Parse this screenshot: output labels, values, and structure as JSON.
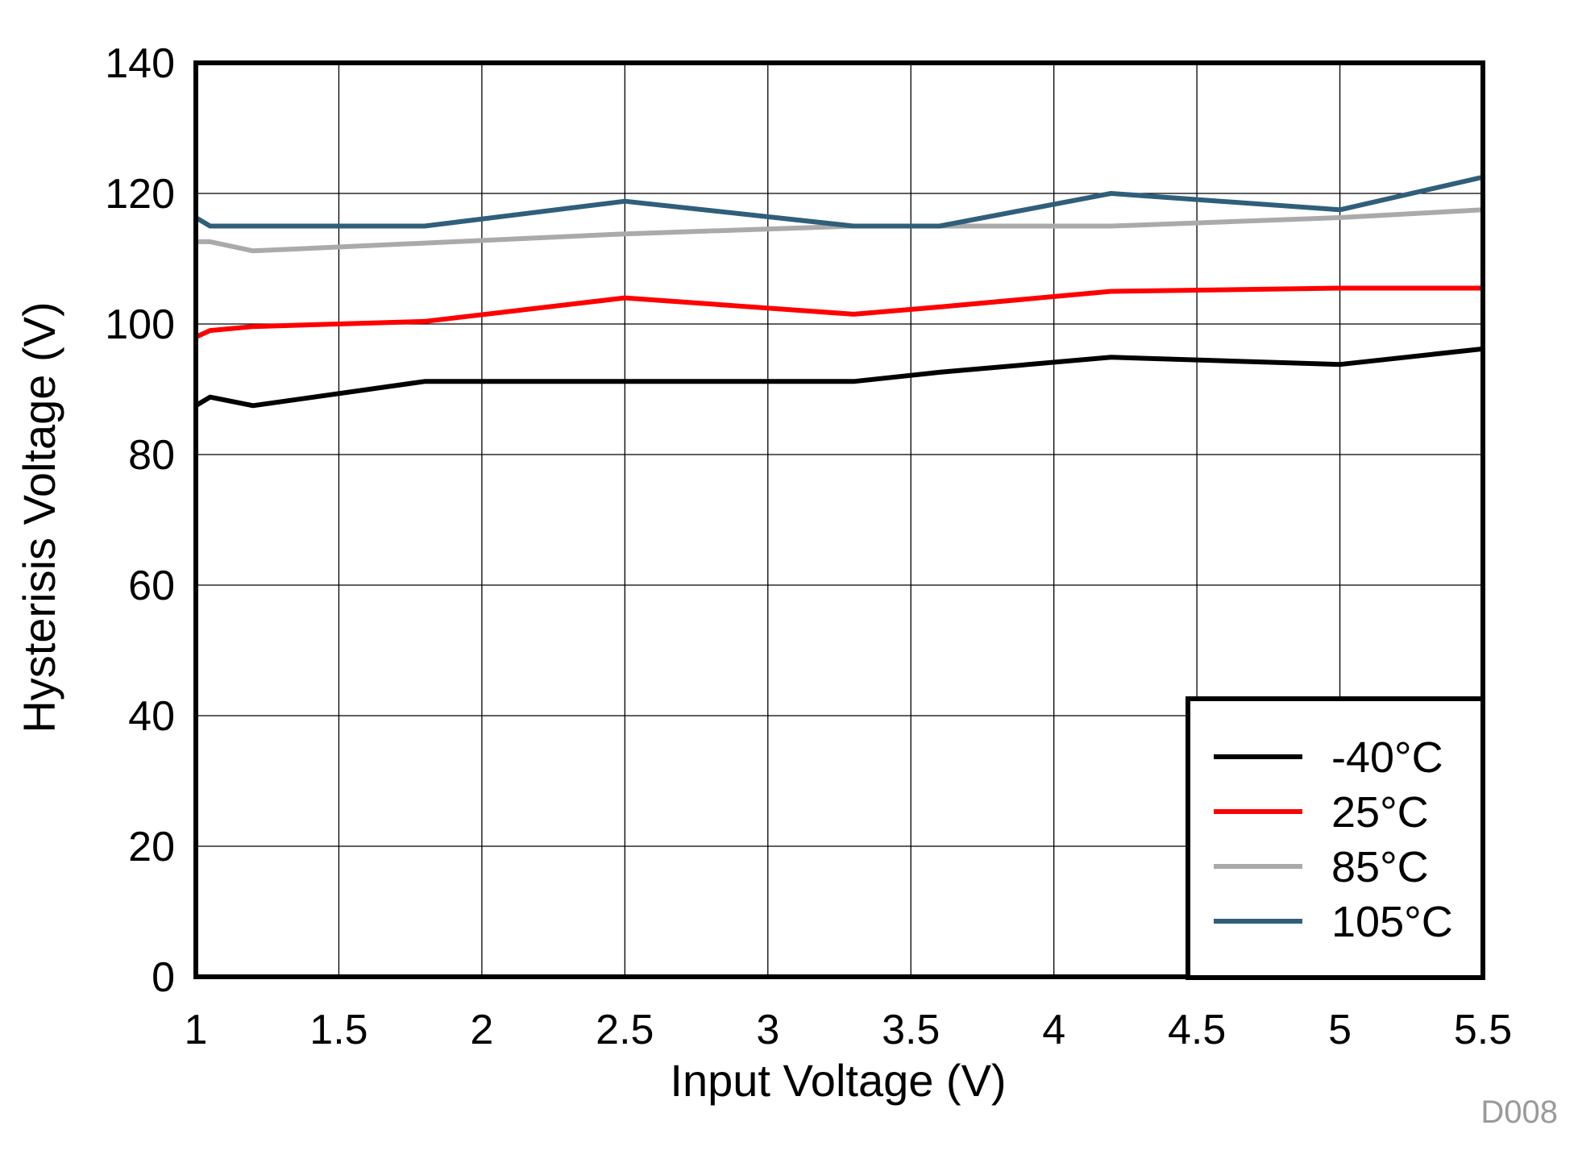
{
  "chart_data": {
    "type": "line",
    "title": "",
    "xlabel": "Input Voltage (V)",
    "ylabel": "Hysterisis Voltage (V)",
    "xlim": [
      1,
      5.5
    ],
    "ylim": [
      0,
      140
    ],
    "xticks": [
      1,
      1.5,
      2,
      2.5,
      3,
      3.5,
      4,
      4.5,
      5,
      5.5
    ],
    "xtick_labels": [
      "1",
      "1.5",
      "2",
      "2.5",
      "3",
      "3.5",
      "4",
      "4.5",
      "5",
      "5.5"
    ],
    "yticks": [
      0,
      20,
      40,
      60,
      80,
      100,
      120,
      140
    ],
    "ytick_labels": [
      "0",
      "20",
      "40",
      "60",
      "80",
      "100",
      "120",
      "140"
    ],
    "grid": true,
    "legend_position": "bottom-right",
    "figure_id": "D008",
    "figure_id_color": "#9a9a9a",
    "series": [
      {
        "name": "-40°C",
        "legend_label": " -40°C",
        "color": "#000000",
        "x": [
          1.0,
          1.05,
          1.2,
          1.8,
          2.5,
          3.3,
          3.6,
          4.2,
          5.0,
          5.5
        ],
        "y": [
          87.5,
          88.8,
          87.5,
          91.2,
          91.2,
          91.2,
          92.6,
          94.9,
          93.8,
          96.2
        ]
      },
      {
        "name": "25°C",
        "legend_label": "25°C",
        "color": "#ff0000",
        "x": [
          1.0,
          1.05,
          1.2,
          1.8,
          2.5,
          3.3,
          3.6,
          4.2,
          5.0,
          5.5
        ],
        "y": [
          98.0,
          99.0,
          99.6,
          100.4,
          104.0,
          101.5,
          102.6,
          105.0,
          105.5,
          105.5
        ]
      },
      {
        "name": "85°C",
        "legend_label": "85°C",
        "color": "#aaaaaa",
        "x": [
          1.0,
          1.05,
          1.2,
          1.8,
          2.5,
          3.3,
          3.6,
          4.2,
          5.0,
          5.5
        ],
        "y": [
          112.6,
          112.6,
          111.2,
          112.4,
          113.8,
          115.0,
          115.0,
          115.0,
          116.3,
          117.5
        ]
      },
      {
        "name": "105°C",
        "legend_label": "105°C",
        "color": "#2f5f7a",
        "x": [
          1.0,
          1.05,
          1.2,
          1.8,
          2.5,
          3.3,
          3.6,
          4.2,
          5.0,
          5.5
        ],
        "y": [
          116.3,
          115.0,
          115.0,
          115.0,
          118.8,
          115.0,
          115.0,
          120.0,
          117.5,
          122.5
        ]
      }
    ]
  }
}
